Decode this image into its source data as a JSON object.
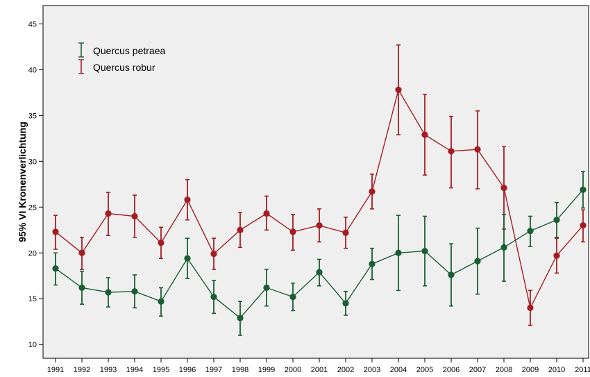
{
  "chart_data": {
    "type": "line",
    "title": "",
    "xlabel": "",
    "ylabel": "95% VI Kronenverlichtung",
    "x": [
      1991,
      1992,
      1993,
      1994,
      1995,
      1996,
      1997,
      1998,
      1999,
      2000,
      2001,
      2002,
      2003,
      2004,
      2005,
      2006,
      2007,
      2008,
      2009,
      2010,
      2011
    ],
    "ylim": [
      8.5,
      47
    ],
    "yticks": [
      10,
      15,
      20,
      25,
      30,
      35,
      40,
      45
    ],
    "grid": false,
    "legend_position": "top-left",
    "series": [
      {
        "name": "Quercus petraea",
        "color": "#1a5e32",
        "values": [
          18.3,
          16.2,
          15.7,
          15.8,
          14.7,
          19.4,
          15.2,
          12.9,
          16.2,
          15.2,
          17.9,
          14.5,
          18.8,
          20.0,
          20.2,
          17.6,
          19.1,
          20.6,
          22.4,
          23.6,
          26.9
        ],
        "upper": [
          20.0,
          18.0,
          17.3,
          17.6,
          16.2,
          21.6,
          17.0,
          14.7,
          18.2,
          16.7,
          19.3,
          15.8,
          20.5,
          24.1,
          24.0,
          21.0,
          22.7,
          24.2,
          24.0,
          25.5,
          28.9
        ],
        "lower": [
          16.5,
          14.4,
          14.1,
          14.0,
          13.1,
          17.2,
          13.4,
          11.0,
          14.2,
          13.7,
          16.4,
          13.2,
          17.1,
          15.9,
          16.4,
          14.2,
          15.5,
          16.9,
          20.7,
          21.7,
          24.9
        ]
      },
      {
        "name": "Quercus robur",
        "color": "#a51c22",
        "values": [
          22.3,
          20.0,
          24.3,
          24.0,
          21.1,
          25.8,
          19.9,
          22.5,
          24.3,
          22.3,
          23.0,
          22.2,
          26.7,
          37.8,
          32.9,
          31.1,
          31.3,
          27.1,
          14.0,
          19.7,
          23.0
        ],
        "upper": [
          24.1,
          21.7,
          26.6,
          26.3,
          22.8,
          28.0,
          21.6,
          24.4,
          26.2,
          24.2,
          24.8,
          23.9,
          28.6,
          42.7,
          37.3,
          34.9,
          35.5,
          31.6,
          15.9,
          21.6,
          24.7
        ],
        "lower": [
          20.4,
          18.2,
          21.9,
          21.7,
          19.4,
          23.6,
          18.2,
          20.6,
          22.5,
          20.3,
          21.2,
          20.5,
          24.8,
          32.9,
          28.5,
          27.1,
          27.0,
          22.6,
          12.1,
          17.8,
          21.2
        ]
      }
    ]
  }
}
